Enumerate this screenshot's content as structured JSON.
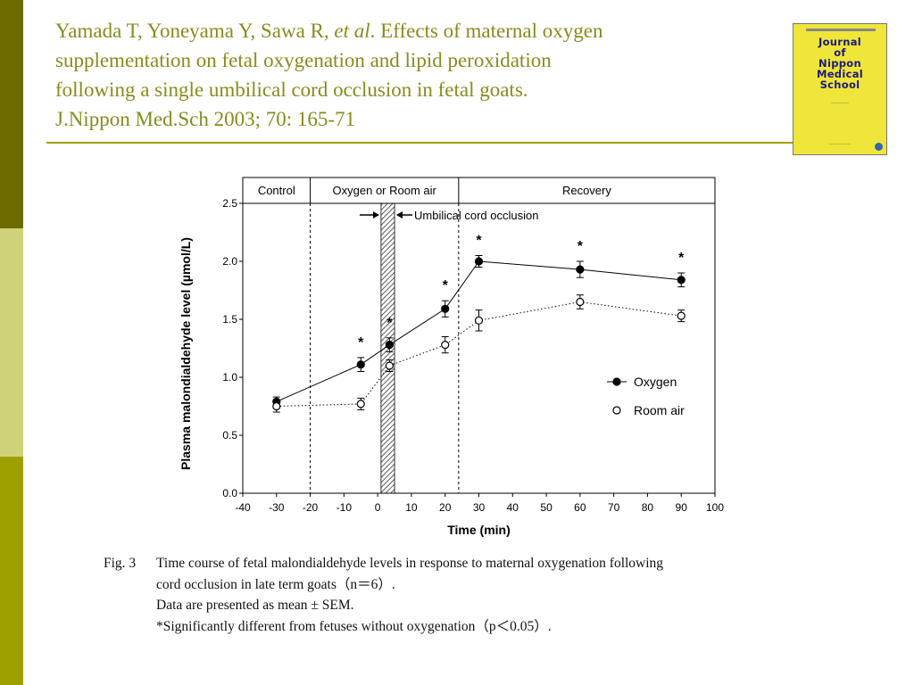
{
  "citation": {
    "lines": [
      {
        "pre": "Yamada T, Yoneyama Y, Sawa R, ",
        "em": "et al",
        "post": ". Effects of  maternal oxygen"
      },
      {
        "pre": "supplementation on fetal oxygenation and lipid peroxidation",
        "em": "",
        "post": ""
      },
      {
        "pre": "following a single umbilical cord occlusion in fetal goats.",
        "em": "",
        "post": ""
      },
      {
        "pre": "J.Nippon Med.Sch 2003; 70: 165-71",
        "em": "",
        "post": ""
      }
    ],
    "color": "#8a8a1e"
  },
  "journal_cover": {
    "title_lines": [
      "Journal",
      "of",
      "Nippon",
      "Medical",
      "School"
    ],
    "background": "#f0e53a",
    "title_color": "#1a1a7a"
  },
  "chart_data": {
    "type": "line",
    "x": [
      -30,
      -5,
      3.5,
      20,
      30,
      60,
      90
    ],
    "series": [
      {
        "name": "Oxygen",
        "marker": "filled-circle",
        "line": "solid",
        "values": [
          0.79,
          1.11,
          1.28,
          1.59,
          2.0,
          1.93,
          1.84
        ],
        "errors": [
          0.04,
          0.06,
          0.06,
          0.07,
          0.05,
          0.07,
          0.06
        ],
        "significant": [
          false,
          true,
          true,
          true,
          true,
          true,
          true
        ]
      },
      {
        "name": "Room air",
        "marker": "open-circle",
        "line": "dotted",
        "values": [
          0.75,
          0.77,
          1.1,
          1.28,
          1.49,
          1.65,
          1.53
        ],
        "errors": [
          0.05,
          0.05,
          0.05,
          0.07,
          0.09,
          0.06,
          0.05
        ]
      }
    ],
    "xlabel": "Time (min)",
    "ylabel": "Plasma  malondialdehyde  level (µmol/L)",
    "xlim": [
      -40,
      100
    ],
    "ylim": [
      0,
      2.5
    ],
    "xticks": [
      -40,
      -30,
      -20,
      -10,
      0,
      10,
      20,
      30,
      40,
      50,
      60,
      70,
      80,
      90,
      100
    ],
    "yticks": [
      0.0,
      0.5,
      1.0,
      1.5,
      2.0,
      2.5
    ],
    "ytick_labels": [
      "0.0",
      "0.5",
      "1.0",
      "1.5",
      "2.0",
      "2.5"
    ],
    "phases": [
      {
        "label": "Control",
        "start": -40,
        "end": -20
      },
      {
        "label": "Oxygen or Room air",
        "start": -20,
        "end": 24
      },
      {
        "label": "Recovery",
        "start": 24,
        "end": 100
      }
    ],
    "occlusion": {
      "start": 1,
      "end": 5,
      "label": "Umbilical cord occlusion"
    },
    "significance_marker": "*",
    "legend": {
      "placement": "right",
      "entries": [
        "Oxygen",
        "Room air"
      ]
    },
    "grid": false
  },
  "caption": {
    "label": "Fig. 3",
    "lines": [
      "Time course of fetal malondialdehyde levels in response to maternal oxygenation following",
      "cord occlusion in late term goats（n＝6）.",
      "Data are presented as mean ± SEM.",
      "*Significantly different from fetuses without oxygenation（p＜0.05）."
    ]
  }
}
